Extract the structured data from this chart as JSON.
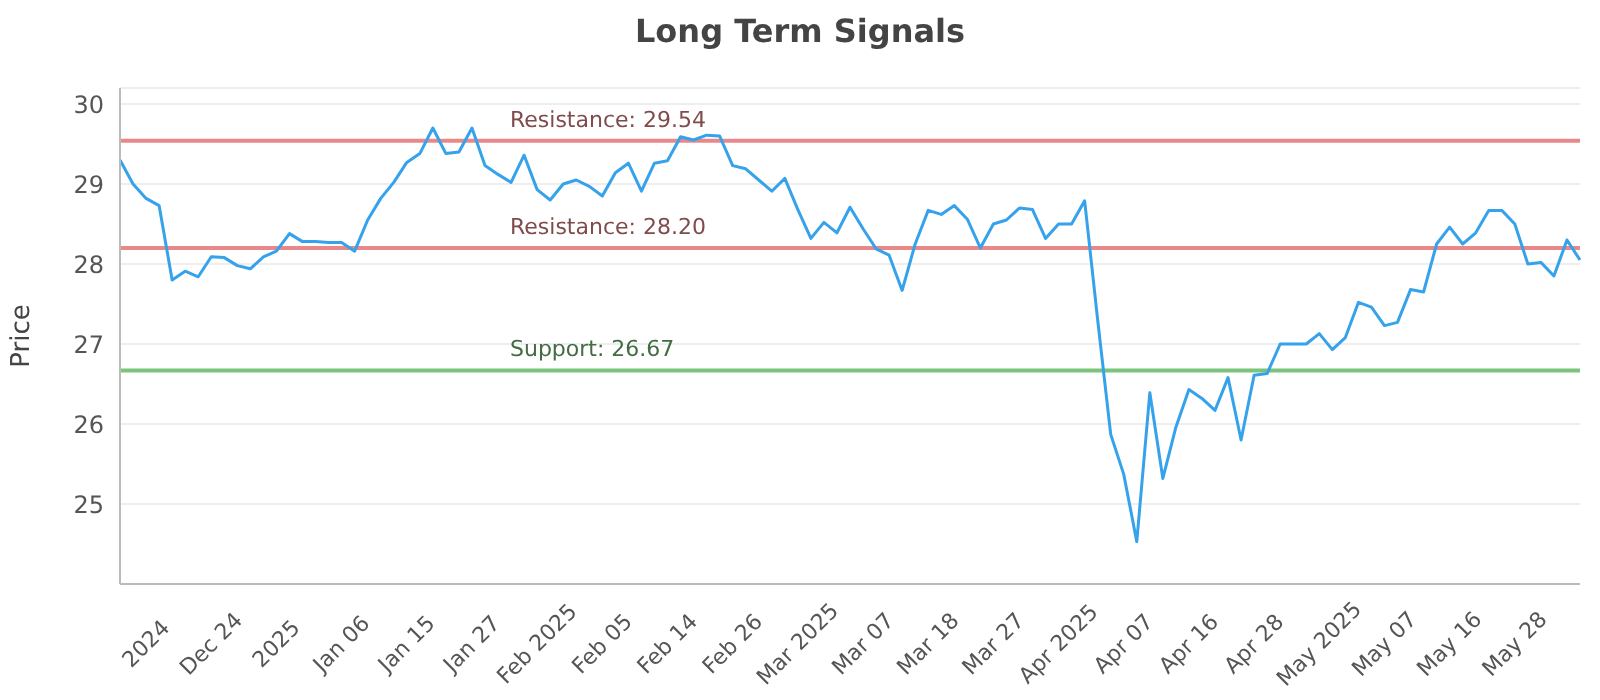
{
  "chart_data": {
    "type": "line",
    "title": "Long Term Signals",
    "ylabel": "Price",
    "categories": [
      null,
      null,
      "2024",
      null,
      null,
      null,
      null,
      "Dec 24",
      null,
      null,
      null,
      null,
      "2025",
      null,
      null,
      null,
      null,
      "Jan 06",
      null,
      null,
      null,
      null,
      "Jan 15",
      null,
      null,
      null,
      null,
      "Jan 27",
      null,
      null,
      null,
      null,
      "Feb 2025",
      null,
      null,
      null,
      null,
      "Feb 05",
      null,
      null,
      null,
      null,
      "Feb 14",
      null,
      null,
      null,
      null,
      "Feb 26",
      null,
      null,
      null,
      null,
      "Mar 2025",
      null,
      null,
      null,
      null,
      "Mar 07",
      null,
      null,
      null,
      null,
      "Mar 18",
      null,
      null,
      null,
      null,
      "Mar 27",
      null,
      null,
      null,
      null,
      "Apr 2025",
      null,
      null,
      null,
      null,
      "Apr 07",
      null,
      null,
      null,
      null,
      "Apr 16",
      null,
      null,
      null,
      null,
      "Apr 28",
      null,
      null,
      null,
      null,
      "May 2025",
      null,
      null,
      null,
      null,
      "May 07",
      null,
      null,
      null,
      null,
      "May 16",
      null,
      null,
      null,
      null,
      "May 28",
      null,
      null,
      null,
      null,
      null
    ],
    "series": [
      {
        "color": "#35a2eb",
        "values": [
          29.3,
          29.0,
          28.82,
          28.73,
          27.8,
          27.91,
          27.84,
          28.09,
          28.08,
          27.98,
          27.94,
          28.09,
          28.16,
          28.38,
          28.28,
          28.28,
          28.27,
          28.27,
          28.16,
          28.55,
          28.82,
          29.02,
          29.27,
          29.38,
          29.7,
          29.38,
          29.4,
          29.7,
          29.23,
          29.12,
          29.02,
          29.36,
          28.93,
          28.8,
          29.0,
          29.05,
          28.97,
          28.85,
          29.14,
          29.26,
          28.91,
          29.26,
          29.29,
          29.59,
          29.55,
          29.61,
          29.6,
          29.23,
          29.19,
          29.05,
          28.91,
          29.07,
          28.68,
          28.32,
          28.52,
          28.39,
          28.71,
          28.44,
          28.19,
          28.11,
          27.67,
          28.25,
          28.67,
          28.62,
          28.73,
          28.56,
          28.2,
          28.5,
          28.55,
          28.7,
          28.68,
          28.32,
          28.5,
          28.5,
          28.79,
          27.3,
          25.87,
          25.37,
          24.53,
          26.39,
          25.32,
          25.96,
          26.43,
          26.32,
          26.17,
          26.58,
          25.8,
          26.61,
          26.63,
          27.0,
          27.0,
          27.0,
          27.13,
          26.93,
          27.08,
          27.52,
          27.46,
          27.23,
          27.27,
          27.68,
          27.65,
          28.25,
          28.46,
          28.25,
          28.39,
          28.67,
          28.67,
          28.5,
          28.0,
          28.02,
          27.85,
          28.3,
          28.05
        ]
      }
    ],
    "ylim": [
      24,
      30.2
    ],
    "yticks": [
      25,
      26,
      27,
      28,
      29,
      30
    ],
    "grid": "y",
    "marker": "none",
    "line_style": "solid",
    "legend": false,
    "ref_lines": [
      {
        "axis": "y",
        "value": 29.54,
        "label": "Resistance: 29.54",
        "color": "#e88888"
      },
      {
        "axis": "y",
        "value": 28.2,
        "label": "Resistance: 28.20",
        "color": "#e88888"
      },
      {
        "axis": "y",
        "value": 26.67,
        "label": "Support: 26.67",
        "color": "#7cc47c"
      }
    ]
  }
}
